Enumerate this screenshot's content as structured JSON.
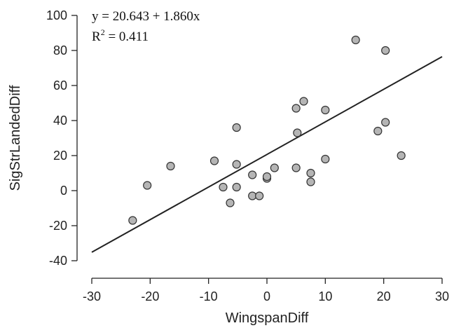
{
  "chart_data": {
    "type": "scatter",
    "xlabel": "WingspanDiff",
    "ylabel": "SigStrLandedDiff",
    "xlim": [
      -30,
      30
    ],
    "ylim": [
      -40,
      100
    ],
    "xticks": [
      -30,
      -20,
      -10,
      0,
      10,
      20,
      30
    ],
    "yticks": [
      -40,
      -20,
      0,
      20,
      40,
      60,
      80,
      100
    ],
    "grid": false,
    "points": [
      {
        "x": -23.0,
        "y": -17
      },
      {
        "x": -20.5,
        "y": 3
      },
      {
        "x": -16.5,
        "y": 14
      },
      {
        "x": -9.0,
        "y": 17
      },
      {
        "x": -7.5,
        "y": 2
      },
      {
        "x": -6.3,
        "y": -7
      },
      {
        "x": -5.2,
        "y": 36
      },
      {
        "x": -5.2,
        "y": 15
      },
      {
        "x": -5.2,
        "y": 2
      },
      {
        "x": -2.5,
        "y": 9
      },
      {
        "x": -2.5,
        "y": -3
      },
      {
        "x": -1.3,
        "y": -3
      },
      {
        "x": 0.0,
        "y": 7
      },
      {
        "x": 0.0,
        "y": 8
      },
      {
        "x": 1.3,
        "y": 13
      },
      {
        "x": 5.0,
        "y": 47
      },
      {
        "x": 5.2,
        "y": 33
      },
      {
        "x": 5.0,
        "y": 13
      },
      {
        "x": 6.3,
        "y": 51
      },
      {
        "x": 7.5,
        "y": 10
      },
      {
        "x": 7.5,
        "y": 5
      },
      {
        "x": 10.0,
        "y": 46
      },
      {
        "x": 10.0,
        "y": 18
      },
      {
        "x": 15.2,
        "y": 86
      },
      {
        "x": 19.0,
        "y": 34
      },
      {
        "x": 20.3,
        "y": 80
      },
      {
        "x": 20.3,
        "y": 39
      },
      {
        "x": 23.0,
        "y": 20
      }
    ],
    "fit_line": {
      "intercept": 20.643,
      "slope": 1.86
    },
    "annotations": {
      "equation": "y = 20.643 + 1.860x",
      "r2_prefix": "R",
      "r2_sup": "2",
      "r2_value": " = 0.411"
    }
  }
}
